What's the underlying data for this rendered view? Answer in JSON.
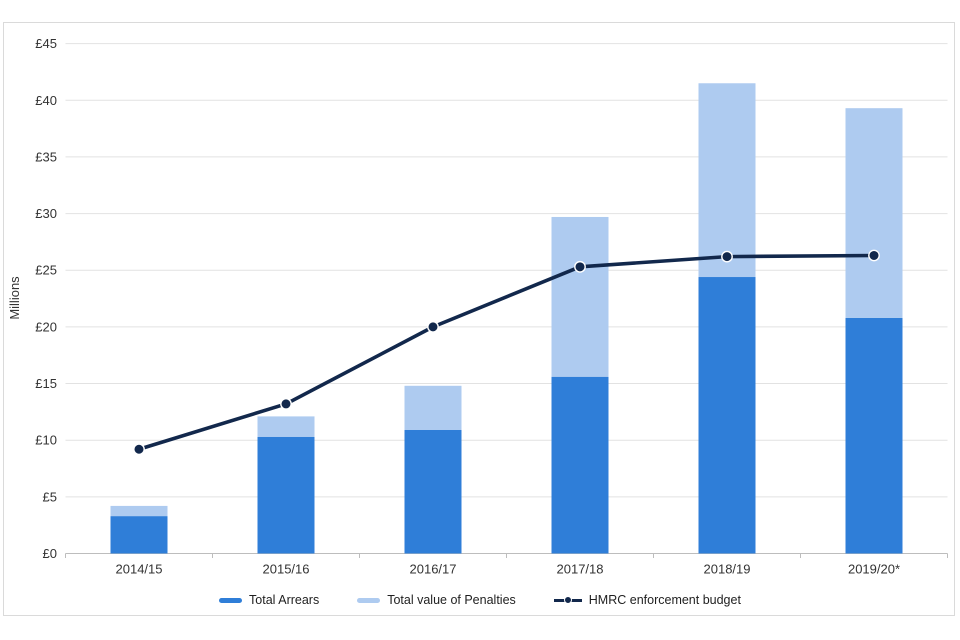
{
  "chart_data": {
    "type": "bar",
    "subtype": "stacked-bars-with-line-overlay",
    "categories": [
      "2014/15",
      "2015/16",
      "2016/17",
      "2017/18",
      "2018/19",
      "2019/20*"
    ],
    "series": [
      {
        "name": "Total Arrears",
        "type": "bar",
        "stack": 0,
        "color": "#2f7ed8",
        "values": [
          3.3,
          10.3,
          10.9,
          15.6,
          24.4,
          20.8
        ]
      },
      {
        "name": "Total value of Penalties",
        "type": "bar",
        "stack": 1,
        "color": "#aecbf0",
        "values": [
          0.9,
          1.8,
          3.9,
          14.1,
          17.1,
          18.5
        ]
      },
      {
        "name": "HMRC enforcement budget",
        "type": "line",
        "color": "#12284c",
        "values": [
          9.2,
          13.2,
          20.0,
          25.3,
          26.2,
          26.3
        ]
      }
    ],
    "stacked_totals": [
      4.2,
      12.1,
      14.8,
      29.7,
      41.5,
      39.3
    ],
    "title": "",
    "xlabel": "",
    "ylabel": "Millions",
    "ylim": [
      0,
      45
    ],
    "ytick_step": 5,
    "yticks": [
      "£0",
      "£5",
      "£10",
      "£15",
      "£20",
      "£25",
      "£30",
      "£35",
      "£40",
      "£45"
    ],
    "grid": true,
    "legend_position": "bottom",
    "colors": {
      "gridline": "#e2e2e2",
      "axis_line": "#bdbdbd",
      "axis_text": "#333333",
      "legend_text": "#1f1f1f",
      "panel_border": "#dadada",
      "marker_halo": "#ffffff",
      "background": "#ffffff"
    }
  }
}
